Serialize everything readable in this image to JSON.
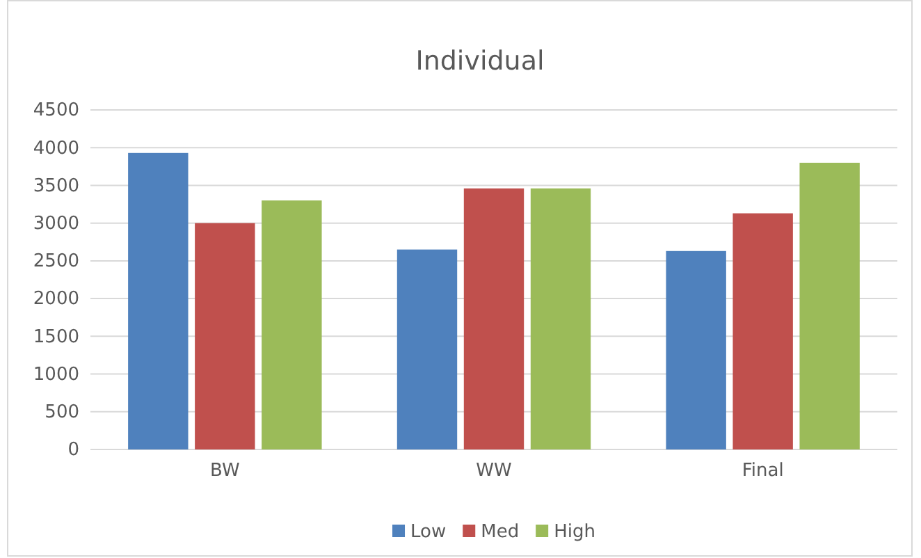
{
  "chart_data": {
    "type": "bar",
    "title": "Individual",
    "categories": [
      "BW",
      "WW",
      "Final"
    ],
    "series": [
      {
        "name": "Low",
        "color": "#4f81bd",
        "values": [
          3930,
          2650,
          2630
        ]
      },
      {
        "name": "Med",
        "color": "#c0504d",
        "values": [
          3000,
          3460,
          3130
        ]
      },
      {
        "name": "High",
        "color": "#9bbb59",
        "values": [
          3300,
          3460,
          3800
        ]
      }
    ],
    "ylim": [
      0,
      4500
    ],
    "yticks": [
      0,
      500,
      1000,
      1500,
      2000,
      2500,
      3000,
      3500,
      4000,
      4500
    ],
    "grid": "y",
    "legend": "bottom"
  }
}
